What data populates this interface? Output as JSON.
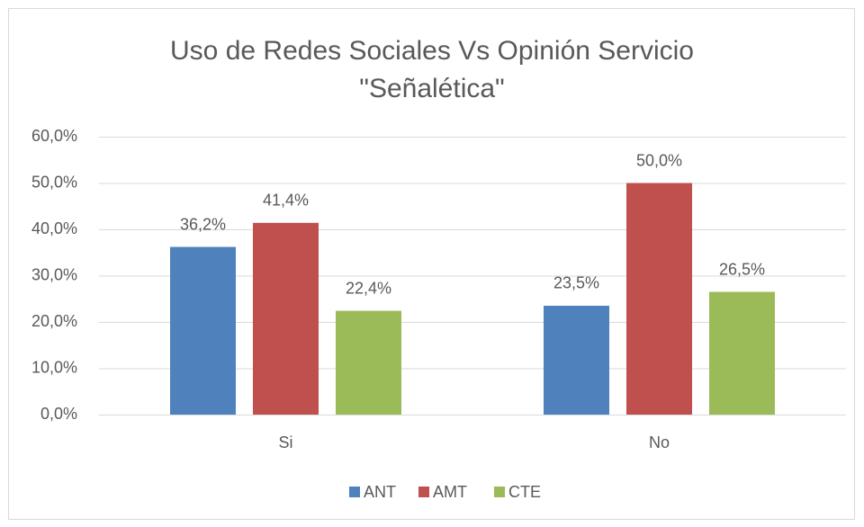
{
  "chart_data": {
    "type": "bar",
    "title": [
      "Uso de Redes Sociales Vs Opinión Servicio",
      "\"Señalética\""
    ],
    "categories": [
      "Si",
      "No"
    ],
    "series": [
      {
        "name": "ANT",
        "color": "#4f81bd",
        "values": [
          36.2,
          23.5
        ],
        "value_labels": [
          "36,2%",
          "23,5%"
        ]
      },
      {
        "name": "AMT",
        "color": "#c0504d",
        "values": [
          41.4,
          50.0
        ],
        "value_labels": [
          "41,4%",
          "50,0%"
        ]
      },
      {
        "name": "CTE",
        "color": "#9bbb59",
        "values": [
          22.4,
          26.5
        ],
        "value_labels": [
          "22,4%",
          "26,5%"
        ]
      }
    ],
    "ylim": [
      0,
      60
    ],
    "yticks": [
      {
        "value": 0,
        "label": "0,0%"
      },
      {
        "value": 10,
        "label": "10,0%"
      },
      {
        "value": 20,
        "label": "20,0%"
      },
      {
        "value": 30,
        "label": "30,0%"
      },
      {
        "value": 40,
        "label": "40,0%"
      },
      {
        "value": 50,
        "label": "50,0%"
      },
      {
        "value": 60,
        "label": "60,0%"
      }
    ],
    "grid": true,
    "legend": "bottom"
  }
}
